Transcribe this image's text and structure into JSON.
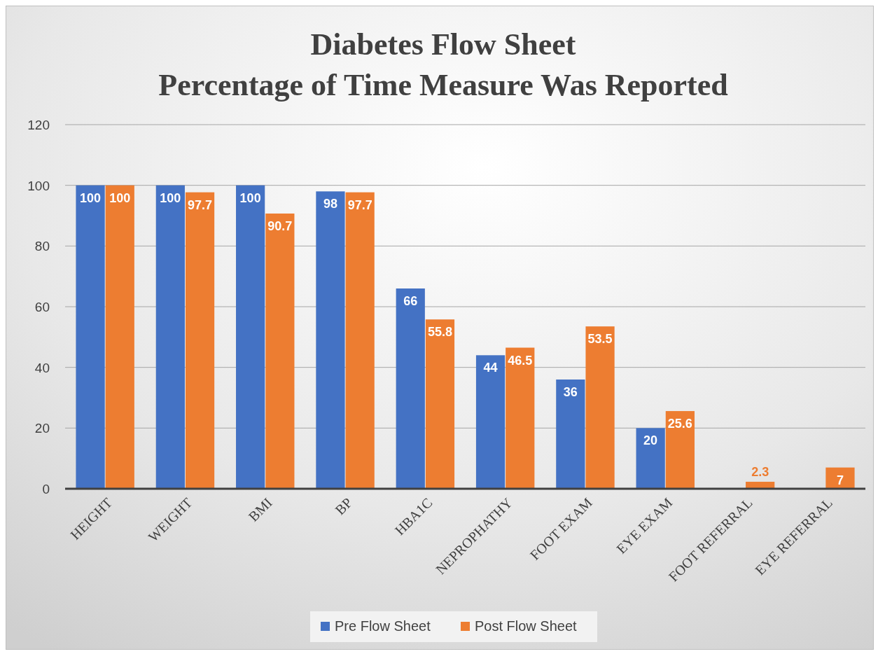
{
  "chart_data": {
    "type": "bar",
    "title": "Diabetes Flow Sheet\nPercentage of Time Measure Was Reported",
    "categories": [
      "HEIGHT",
      "WEIGHT",
      "BMI",
      "BP",
      "HBA1C",
      "NEPROPHATHY",
      "FOOT EXAM",
      "EYE EXAM",
      "FOOT REFERRAL",
      "EYE REFERRAL"
    ],
    "series": [
      {
        "name": "Pre Flow Sheet",
        "color": "#4472c4",
        "values": [
          100,
          100,
          100,
          98,
          66,
          44,
          36,
          20,
          null,
          null
        ]
      },
      {
        "name": "Post Flow Sheet",
        "color": "#ed7d31",
        "values": [
          100,
          97.7,
          90.7,
          97.7,
          55.8,
          46.5,
          53.5,
          25.6,
          2.3,
          7
        ]
      }
    ],
    "ylim": [
      0,
      120
    ],
    "yticks": [
      0,
      20,
      40,
      60,
      80,
      100,
      120
    ],
    "grid": "y",
    "legend": "bottom",
    "data_labels": true
  }
}
